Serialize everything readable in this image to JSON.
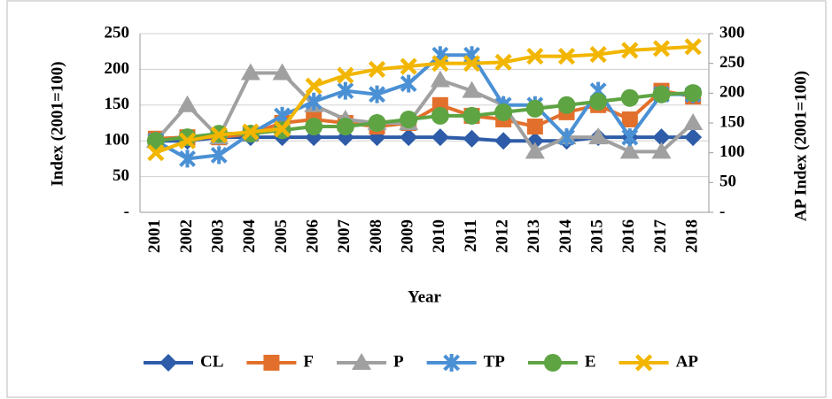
{
  "chart_data": {
    "type": "line",
    "x_label": "Year",
    "y_label": "Index (2001=100)",
    "y2_label": "AP Index (2001=100)",
    "categories": [
      "2001",
      "2002",
      "2003",
      "2004",
      "2005",
      "2006",
      "2007",
      "2008",
      "2009",
      "2010",
      "2011",
      "2012",
      "2013",
      "2014",
      "2015",
      "2016",
      "2017",
      "2018"
    ],
    "ylim": [
      0,
      250
    ],
    "yticks": [
      {
        "value": 0,
        "label": "-"
      },
      50,
      100,
      150,
      200,
      250
    ],
    "y2lim": [
      0,
      300
    ],
    "y2ticks": [
      {
        "value": 0,
        "label": "-"
      },
      50,
      100,
      150,
      200,
      250,
      300
    ],
    "grid": true,
    "legend": "bottom",
    "series": [
      {
        "name": "CL",
        "color": "#2e5ca8",
        "marker": "diamond",
        "values": [
          100,
          100,
          105,
          105,
          105,
          105,
          105,
          105,
          105,
          105,
          103,
          100,
          100,
          100,
          105,
          105,
          105,
          105
        ]
      },
      {
        "name": "F",
        "color": "#e2702c",
        "marker": "square",
        "values": [
          103,
          105,
          105,
          110,
          125,
          130,
          125,
          120,
          125,
          150,
          135,
          130,
          120,
          140,
          150,
          130,
          170,
          162
        ]
      },
      {
        "name": "P",
        "color": "#a0a0a0",
        "marker": "triangle",
        "values": [
          100,
          150,
          105,
          195,
          195,
          150,
          130,
          125,
          125,
          185,
          170,
          150,
          85,
          105,
          105,
          85,
          85,
          125
        ]
      },
      {
        "name": "TP",
        "color": "#4a90d4",
        "marker": "star",
        "values": [
          100,
          75,
          80,
          110,
          135,
          155,
          170,
          165,
          180,
          220,
          220,
          150,
          150,
          105,
          170,
          105,
          165,
          165
        ]
      },
      {
        "name": "E",
        "color": "#5ea443",
        "marker": "circle",
        "values": [
          100,
          105,
          110,
          110,
          115,
          120,
          120,
          125,
          130,
          135,
          135,
          140,
          145,
          150,
          155,
          160,
          165,
          167
        ]
      },
      {
        "name": "AP",
        "color": "#f2b600",
        "marker": "x",
        "axis": "y2",
        "values": [
          100,
          120,
          130,
          135,
          140,
          212,
          230,
          240,
          245,
          250,
          250,
          252,
          262,
          262,
          265,
          272,
          275,
          278
        ]
      }
    ]
  }
}
